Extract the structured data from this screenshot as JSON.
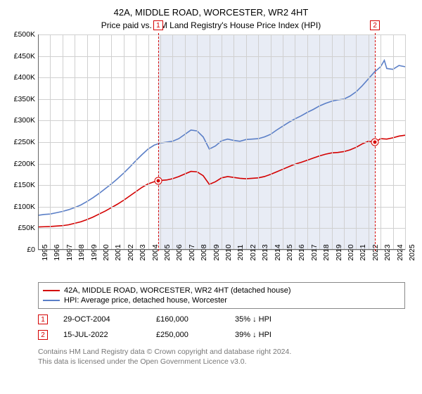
{
  "title": "42A, MIDDLE ROAD, WORCESTER, WR2 4HT",
  "subtitle": "Price paid vs. HM Land Registry's House Price Index (HPI)",
  "chart": {
    "type": "line",
    "background_color": "#ffffff",
    "shade_color": "#e8ecf5",
    "grid_color": "#d0d0d0",
    "axis_color": "#666666",
    "label_fontsize": 10.5,
    "x_start": 1995,
    "x_end": 2025,
    "x_tick_step": 1,
    "shade_from": 2004.82,
    "shade_to": 2022.54,
    "y_min": 0,
    "y_max": 500000,
    "y_tick_step": 50000,
    "y_tick_prefix": "£",
    "y_tick_suffix": "K",
    "series": [
      {
        "name": "property",
        "label": "42A, MIDDLE ROAD, WORCESTER, WR2 4HT (detached house)",
        "color": "#d40000",
        "line_width": 1.6,
        "data": [
          [
            1995,
            53000
          ],
          [
            1995.5,
            53500
          ],
          [
            1996,
            54000
          ],
          [
            1996.5,
            55000
          ],
          [
            1997,
            56000
          ],
          [
            1997.5,
            58000
          ],
          [
            1998,
            61500
          ],
          [
            1998.5,
            65000
          ],
          [
            1999,
            70000
          ],
          [
            1999.5,
            76000
          ],
          [
            2000,
            83000
          ],
          [
            2000.5,
            90000
          ],
          [
            2001,
            98000
          ],
          [
            2001.5,
            106000
          ],
          [
            2002,
            115000
          ],
          [
            2002.5,
            125000
          ],
          [
            2003,
            135000
          ],
          [
            2003.5,
            145000
          ],
          [
            2004,
            153000
          ],
          [
            2004.5,
            158000
          ],
          [
            2004.82,
            160000
          ],
          [
            2005,
            161000
          ],
          [
            2005.5,
            162000
          ],
          [
            2006,
            165000
          ],
          [
            2006.5,
            170000
          ],
          [
            2007,
            176000
          ],
          [
            2007.5,
            182000
          ],
          [
            2008,
            181000
          ],
          [
            2008.5,
            172000
          ],
          [
            2009,
            152000
          ],
          [
            2009.5,
            158000
          ],
          [
            2010,
            167000
          ],
          [
            2010.5,
            170000
          ],
          [
            2011,
            168000
          ],
          [
            2011.5,
            166000
          ],
          [
            2012,
            165000
          ],
          [
            2012.5,
            166000
          ],
          [
            2013,
            167000
          ],
          [
            2013.5,
            170000
          ],
          [
            2014,
            175000
          ],
          [
            2014.5,
            181000
          ],
          [
            2015,
            187000
          ],
          [
            2015.5,
            193000
          ],
          [
            2016,
            199000
          ],
          [
            2016.5,
            203000
          ],
          [
            2017,
            208000
          ],
          [
            2017.5,
            213000
          ],
          [
            2018,
            218000
          ],
          [
            2018.5,
            222000
          ],
          [
            2019,
            225000
          ],
          [
            2019.5,
            226000
          ],
          [
            2020,
            228000
          ],
          [
            2020.5,
            232000
          ],
          [
            2021,
            238000
          ],
          [
            2021.5,
            246000
          ],
          [
            2022,
            252000
          ],
          [
            2022.5,
            250000
          ],
          [
            2022.54,
            250000
          ],
          [
            2023,
            258000
          ],
          [
            2023.5,
            257000
          ],
          [
            2024,
            260000
          ],
          [
            2024.5,
            264000
          ],
          [
            2025,
            266000
          ]
        ]
      },
      {
        "name": "hpi",
        "label": "HPI: Average price, detached house, Worcester",
        "color": "#5b7fc7",
        "line_width": 1.4,
        "data": [
          [
            1995,
            80000
          ],
          [
            1995.5,
            82000
          ],
          [
            1996,
            83000
          ],
          [
            1996.5,
            86000
          ],
          [
            1997,
            89000
          ],
          [
            1997.5,
            93000
          ],
          [
            1998,
            98000
          ],
          [
            1998.5,
            104000
          ],
          [
            1999,
            112000
          ],
          [
            1999.5,
            121000
          ],
          [
            2000,
            131000
          ],
          [
            2000.5,
            142000
          ],
          [
            2001,
            153000
          ],
          [
            2001.5,
            165000
          ],
          [
            2002,
            178000
          ],
          [
            2002.5,
            192000
          ],
          [
            2003,
            207000
          ],
          [
            2003.5,
            221000
          ],
          [
            2004,
            234000
          ],
          [
            2004.5,
            243000
          ],
          [
            2005,
            248000
          ],
          [
            2005.5,
            250000
          ],
          [
            2006,
            252000
          ],
          [
            2006.5,
            258000
          ],
          [
            2007,
            268000
          ],
          [
            2007.5,
            278000
          ],
          [
            2008,
            276000
          ],
          [
            2008.5,
            262000
          ],
          [
            2009,
            234000
          ],
          [
            2009.5,
            241000
          ],
          [
            2010,
            253000
          ],
          [
            2010.5,
            257000
          ],
          [
            2011,
            254000
          ],
          [
            2011.5,
            252000
          ],
          [
            2012,
            256000
          ],
          [
            2012.5,
            257000
          ],
          [
            2013,
            258000
          ],
          [
            2013.5,
            262000
          ],
          [
            2014,
            268000
          ],
          [
            2014.5,
            278000
          ],
          [
            2015,
            287000
          ],
          [
            2015.5,
            296000
          ],
          [
            2016,
            304000
          ],
          [
            2016.5,
            311000
          ],
          [
            2017,
            319000
          ],
          [
            2017.5,
            326000
          ],
          [
            2018,
            334000
          ],
          [
            2018.5,
            340000
          ],
          [
            2019,
            345000
          ],
          [
            2019.5,
            348000
          ],
          [
            2020,
            350000
          ],
          [
            2020.5,
            357000
          ],
          [
            2021,
            367000
          ],
          [
            2021.5,
            381000
          ],
          [
            2022,
            397000
          ],
          [
            2022.5,
            413000
          ],
          [
            2023,
            425000
          ],
          [
            2023.3,
            440000
          ],
          [
            2023.5,
            421000
          ],
          [
            2024,
            419000
          ],
          [
            2024.5,
            428000
          ],
          [
            2025,
            425000
          ]
        ]
      }
    ],
    "markers": [
      {
        "id": "1",
        "x": 2004.82,
        "y": 160000,
        "color": "#d40000"
      },
      {
        "id": "2",
        "x": 2022.54,
        "y": 250000,
        "color": "#d40000"
      }
    ]
  },
  "events": [
    {
      "badge": "1",
      "date": "29-OCT-2004",
      "price": "£160,000",
      "delta": "35% ↓ HPI",
      "color": "#d40000"
    },
    {
      "badge": "2",
      "date": "15-JUL-2022",
      "price": "£250,000",
      "delta": "39% ↓ HPI",
      "color": "#d40000"
    }
  ],
  "footnote_line1": "Contains HM Land Registry data © Crown copyright and database right 2024.",
  "footnote_line2": "This data is licensed under the Open Government Licence v3.0."
}
